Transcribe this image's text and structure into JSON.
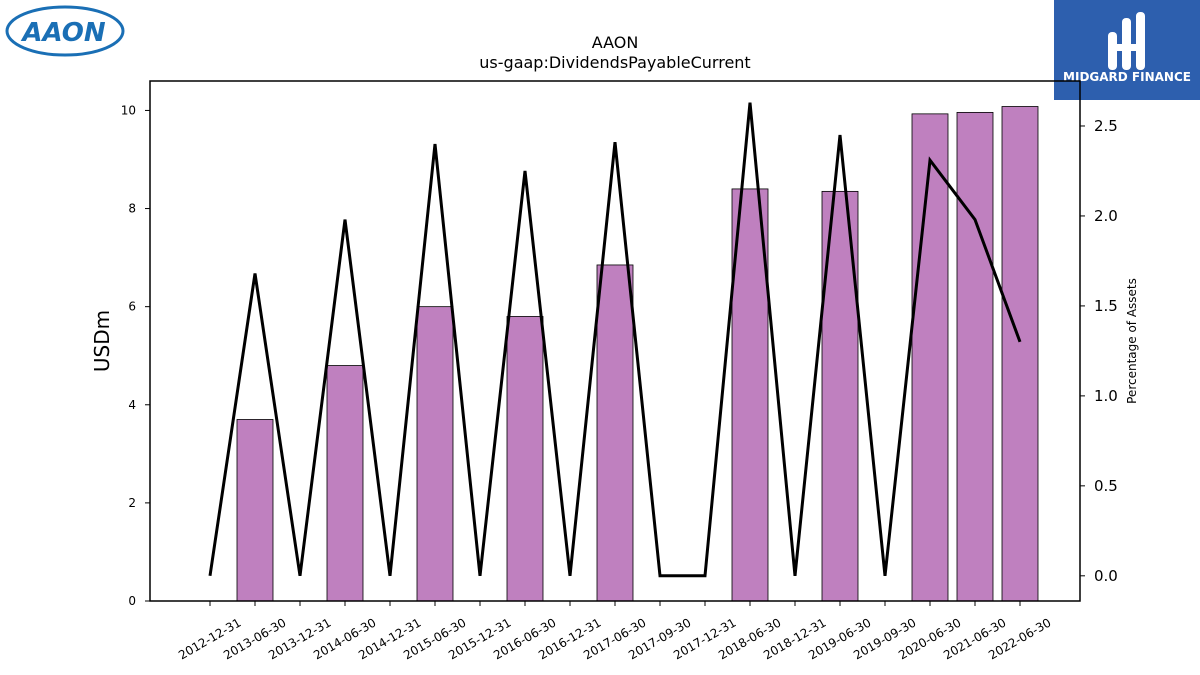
{
  "header": {
    "company_logo_text": "AAON",
    "brand_logo_text": "MIDGARD FINANCE"
  },
  "colors": {
    "bar_fill": "#bf80bf",
    "bar_stroke": "#000000",
    "line": "#000000",
    "logo_blue": "#1a6fb5",
    "brand_bg": "#2d5fae"
  },
  "chart_data": {
    "type": "bar",
    "title": "AAON",
    "subtitle": "us-gaap:DividendsPayableCurrent",
    "ylabel": "USDm",
    "y2label": "Percentage of Assets",
    "categories": [
      "2012-12-31",
      "2013-06-30",
      "2013-12-31",
      "2014-06-30",
      "2014-12-31",
      "2015-06-30",
      "2015-12-31",
      "2016-06-30",
      "2016-12-31",
      "2017-06-30",
      "2017-09-30",
      "2017-12-31",
      "2018-06-30",
      "2018-12-31",
      "2019-06-30",
      "2019-09-30",
      "2020-06-30",
      "2021-06-30",
      "2022-06-30"
    ],
    "series": [
      {
        "name": "",
        "axis": "left",
        "kind": "bar",
        "values": [
          0,
          3.7,
          0,
          4.8,
          0,
          6.0,
          0,
          5.8,
          0,
          6.85,
          0,
          0,
          8.4,
          0,
          8.35,
          0,
          9.93,
          9.96,
          10.08
        ]
      },
      {
        "name": "",
        "axis": "right",
        "kind": "line",
        "values": [
          0,
          1.68,
          0,
          1.98,
          0,
          2.4,
          0,
          2.25,
          0,
          2.41,
          0,
          0,
          2.63,
          0,
          2.45,
          0,
          2.31,
          1.98,
          1.3
        ]
      }
    ],
    "ylim": [
      0,
      10.6
    ],
    "yticks": [
      0,
      2,
      4,
      6,
      8,
      10
    ],
    "y2lim": [
      -0.14,
      2.75
    ],
    "y2ticks": [
      0.0,
      0.5,
      1.0,
      1.5,
      2.0,
      2.5
    ],
    "y2ticklabels": [
      "0.0",
      "0.5",
      "1.0",
      "1.5",
      "2.0",
      "2.5"
    ],
    "grid": false,
    "legend": "none"
  }
}
